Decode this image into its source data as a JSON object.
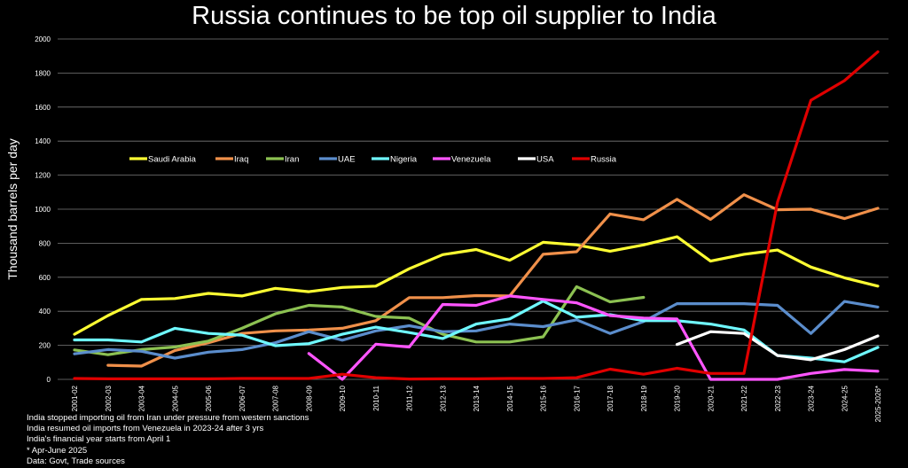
{
  "chart_data": {
    "type": "line",
    "title": "Russia continues to be top oil supplier to India",
    "ylabel": "Thousand barrels per day",
    "xlabel": "",
    "ylim": [
      0,
      2000
    ],
    "yticks": [
      0,
      200,
      400,
      600,
      800,
      1000,
      1200,
      1400,
      1600,
      1800,
      2000
    ],
    "grid": "horizontal",
    "legend_position": "upper-left-inside",
    "categories": [
      "2001-02",
      "2002-03",
      "2003-04",
      "2004-05",
      "2005-06",
      "2006-07",
      "2007-08",
      "2008-09",
      "2009-10",
      "2010-11",
      "2011-12",
      "2012-13",
      "2013-14",
      "2014-15",
      "2015-16",
      "2016-17",
      "2017-18",
      "2018-19",
      "2019-20",
      "2020-21",
      "2021-22",
      "2022-23",
      "2023-24",
      "2024-25",
      "2025-2026*"
    ],
    "series": [
      {
        "name": "Saudi Arabia",
        "color": "#FFFF33",
        "values": [
          265,
          375,
          470,
          475,
          505,
          490,
          535,
          515,
          540,
          548,
          650,
          733,
          763,
          700,
          805,
          790,
          753,
          790,
          838,
          695,
          735,
          760,
          660,
          597,
          548
        ]
      },
      {
        "name": "Iraq",
        "color": "#F0904A",
        "values": [
          null,
          83,
          78,
          170,
          215,
          270,
          285,
          290,
          300,
          345,
          480,
          480,
          492,
          490,
          735,
          750,
          972,
          938,
          1058,
          940,
          1085,
          997,
          1000,
          945,
          1005
        ]
      },
      {
        "name": "Iran",
        "color": "#8CC152",
        "values": [
          173,
          145,
          175,
          190,
          225,
          300,
          385,
          435,
          425,
          370,
          360,
          265,
          220,
          220,
          250,
          545,
          455,
          482,
          null,
          null,
          null,
          null,
          null,
          null,
          null
        ]
      },
      {
        "name": "UAE",
        "color": "#5B8DCC",
        "values": [
          150,
          175,
          165,
          125,
          160,
          175,
          215,
          280,
          230,
          285,
          315,
          280,
          285,
          325,
          310,
          350,
          270,
          340,
          445,
          445,
          445,
          435,
          270,
          458,
          425
        ]
      },
      {
        "name": "Nigeria",
        "color": "#6FF8FF",
        "values": [
          232,
          232,
          220,
          300,
          270,
          260,
          198,
          210,
          265,
          307,
          275,
          240,
          325,
          355,
          460,
          365,
          380,
          345,
          345,
          325,
          290,
          140,
          125,
          103,
          188
        ]
      },
      {
        "name": "Venezuela",
        "color": "#FF55FF",
        "values": [
          null,
          null,
          null,
          null,
          null,
          null,
          null,
          152,
          0,
          207,
          190,
          440,
          435,
          490,
          470,
          450,
          375,
          360,
          355,
          0,
          0,
          0,
          35,
          58,
          48
        ]
      },
      {
        "name": "USA",
        "color": "#FFFFFF",
        "values": [
          null,
          null,
          null,
          null,
          null,
          null,
          null,
          null,
          null,
          null,
          null,
          null,
          null,
          null,
          null,
          null,
          null,
          null,
          205,
          280,
          270,
          140,
          115,
          175,
          255
        ]
      },
      {
        "name": "Russia",
        "color": "#E00000",
        "values": [
          5,
          3,
          3,
          3,
          3,
          5,
          5,
          5,
          30,
          10,
          2,
          3,
          3,
          5,
          5,
          10,
          60,
          30,
          65,
          35,
          35,
          1040,
          1640,
          1755,
          1925
        ]
      }
    ],
    "notes": [
      "India stopped importing oil from Iran under pressure from western sanctions",
      "India resumed oil imports from Venezuela in 2023-24 after 3 yrs",
      "India's financial year starts from April 1",
      "* Apr-June 2025",
      "Data: Govt, Trade sources"
    ]
  }
}
